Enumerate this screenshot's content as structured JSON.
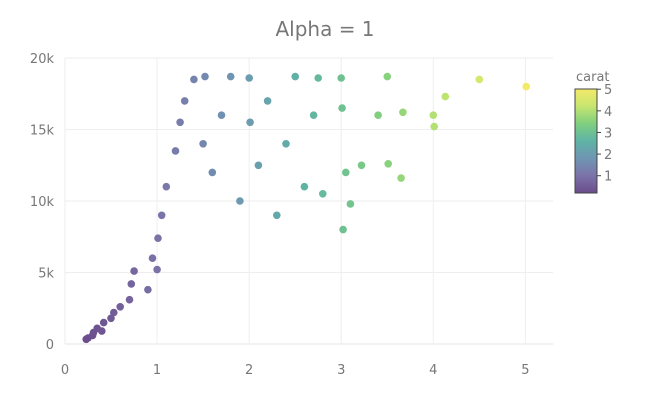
{
  "chart_data": {
    "type": "scatter",
    "title": "Alpha = 1",
    "xlabel": "",
    "ylabel": "",
    "xlim": [
      0,
      5.3
    ],
    "ylim": [
      0,
      20000
    ],
    "x_ticks": [
      0,
      1,
      2,
      3,
      4,
      5
    ],
    "x_tick_labels": [
      "0",
      "1",
      "2",
      "3",
      "4",
      "5"
    ],
    "y_ticks": [
      0,
      5000,
      10000,
      15000,
      20000
    ],
    "y_tick_labels": [
      "0",
      "5k",
      "10k",
      "15k",
      "20k"
    ],
    "grid": true,
    "legend": "right",
    "colorbar": {
      "title": "carat",
      "range": [
        0.2,
        5.01
      ],
      "ticks": [
        1,
        2,
        3,
        4,
        5
      ],
      "tick_labels": [
        "1",
        "2",
        "3",
        "4",
        "5"
      ],
      "colors": [
        "#6b4c8c",
        "#7b73a8",
        "#6f95b3",
        "#5fb3a5",
        "#7fcf7f",
        "#c6e56f",
        "#f3ea6a"
      ]
    },
    "series": [
      {
        "points": [
          [
            0.23,
            330
          ],
          [
            0.25,
            420
          ],
          [
            0.3,
            600
          ],
          [
            0.31,
            800
          ],
          [
            0.35,
            1100
          ],
          [
            0.4,
            900
          ],
          [
            0.42,
            1500
          ],
          [
            0.5,
            1800
          ],
          [
            0.53,
            2200
          ],
          [
            0.6,
            2600
          ],
          [
            0.7,
            3100
          ],
          [
            0.72,
            4200
          ],
          [
            0.75,
            5100
          ],
          [
            0.9,
            3800
          ],
          [
            0.95,
            6000
          ],
          [
            1.0,
            5200
          ],
          [
            1.01,
            7400
          ],
          [
            1.05,
            9000
          ],
          [
            1.1,
            11000
          ],
          [
            1.2,
            13500
          ],
          [
            1.25,
            15500
          ],
          [
            1.3,
            17000
          ],
          [
            1.4,
            18500
          ],
          [
            1.5,
            14000
          ],
          [
            1.52,
            18700
          ],
          [
            1.6,
            12000
          ],
          [
            1.7,
            16000
          ],
          [
            1.8,
            18700
          ],
          [
            1.9,
            10000
          ],
          [
            2.0,
            18600
          ],
          [
            2.01,
            15500
          ],
          [
            2.1,
            12500
          ],
          [
            2.2,
            17000
          ],
          [
            2.3,
            9000
          ],
          [
            2.4,
            14000
          ],
          [
            2.5,
            18700
          ],
          [
            2.6,
            11000
          ],
          [
            2.7,
            16000
          ],
          [
            2.75,
            18600
          ],
          [
            2.8,
            10500
          ],
          [
            3.0,
            18600
          ],
          [
            3.01,
            16500
          ],
          [
            3.02,
            8000
          ],
          [
            3.05,
            12000
          ],
          [
            3.1,
            9800
          ],
          [
            3.22,
            12500
          ],
          [
            3.4,
            16000
          ],
          [
            3.5,
            18700
          ],
          [
            3.51,
            12600
          ],
          [
            3.65,
            11600
          ],
          [
            3.67,
            16200
          ],
          [
            4.0,
            16000
          ],
          [
            4.01,
            15200
          ],
          [
            4.13,
            17300
          ],
          [
            4.5,
            18500
          ],
          [
            5.01,
            18000
          ]
        ]
      }
    ]
  }
}
